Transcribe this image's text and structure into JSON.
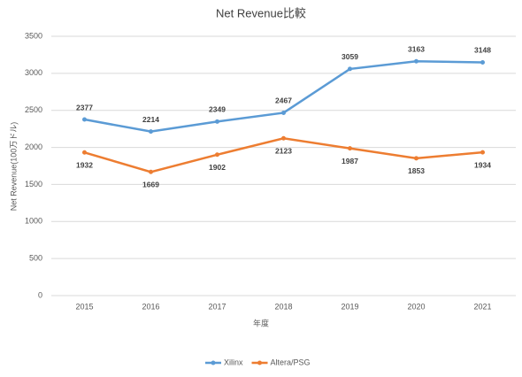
{
  "chart_data": {
    "type": "line",
    "title": "Net Revenue比較",
    "x_label": "年度",
    "y_label": "Net Revenue(100万ドル)",
    "categories": [
      "2015",
      "2016",
      "2017",
      "2018",
      "2019",
      "2020",
      "2021"
    ],
    "series": [
      {
        "name": "Xilinx",
        "color": "#5b9bd5",
        "values": [
          2377,
          2214,
          2349,
          2467,
          3059,
          3163,
          3148
        ]
      },
      {
        "name": "Altera/PSG",
        "color": "#ed7d31",
        "values": [
          1932,
          1669,
          1902,
          2123,
          1987,
          1853,
          1934
        ]
      }
    ],
    "ylim": [
      0,
      3500
    ],
    "yticks": [
      0,
      500,
      1000,
      1500,
      2000,
      2500,
      3000,
      3500
    ],
    "grid": true,
    "legend": "bottom"
  }
}
